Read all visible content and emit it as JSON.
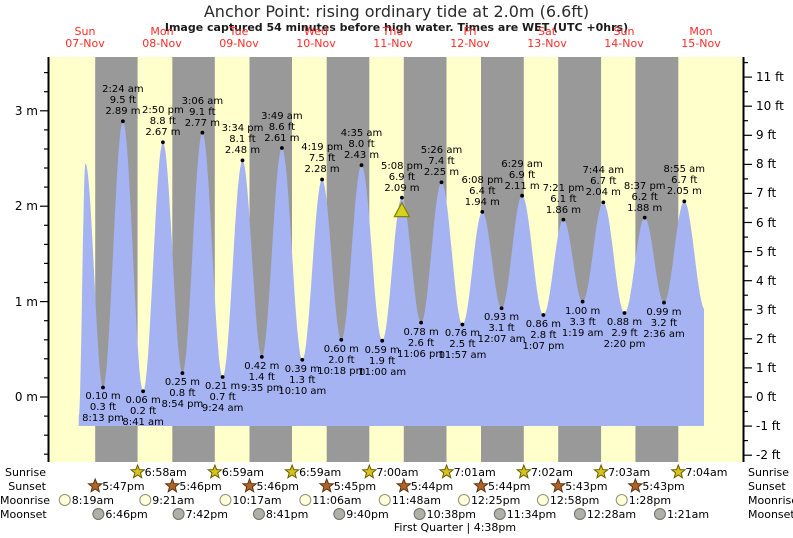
{
  "title": "Anchor Point: rising  ordinary tide at 2.0m (6.6ft)",
  "subtitle": "Image captured 54 minutes before high water. Times are WET (UTC +0hrs)",
  "moon_phase_note": "First Quarter | 4:38pm",
  "colors": {
    "background": "#ffffff",
    "plot_day_band": "#ffffcc",
    "plot_night_band": "#999999",
    "tide_area": "#a5b3f2",
    "date_label": "#ff2a2a",
    "axis": "#000000",
    "annotation_dot": "#000000",
    "current_marker_fill": "#d6d21e",
    "current_marker_stroke": "#878200",
    "sunrise_star_fill": "#d4c41e",
    "sunrise_star_stroke": "#6b5a00",
    "sunset_star_fill": "#b06428",
    "sunset_star_stroke": "#5c3210",
    "moonrise_fill": "#ffffd9",
    "moonrise_stroke": "#8f8f77",
    "moonset_fill": "#b0b0a8",
    "moonset_stroke": "#70706a"
  },
  "chart_data": {
    "type": "area",
    "title": "Anchor Point: rising  ordinary tide at 2.0m (6.6ft)",
    "timezone_note": "Times are WET (UTC +0hrs)",
    "ylabel_left": "meters",
    "ylabel_right": "feet",
    "ylim_m": [
      -0.72,
      3.57
    ],
    "area_base_ft": -1,
    "grid": false,
    "days": [
      {
        "dow": "Sun",
        "date": "07-Nov"
      },
      {
        "dow": "Mon",
        "date": "08-Nov"
      },
      {
        "dow": "Tue",
        "date": "09-Nov"
      },
      {
        "dow": "Wed",
        "date": "10-Nov"
      },
      {
        "dow": "Thu",
        "date": "11-Nov"
      },
      {
        "dow": "Fri",
        "date": "12-Nov"
      },
      {
        "dow": "Sat",
        "date": "13-Nov"
      },
      {
        "dow": "Sun",
        "date": "14-Nov"
      },
      {
        "dow": "Mon",
        "date": "15-Nov"
      }
    ],
    "y_axis_left": [
      {
        "label": "3 m",
        "value": 3
      },
      {
        "label": "2 m",
        "value": 2
      },
      {
        "label": "1 m",
        "value": 1
      },
      {
        "label": "0 m",
        "value": 0
      }
    ],
    "y_axis_right": [
      {
        "label": "11 ft",
        "value": 11
      },
      {
        "label": "10 ft",
        "value": 10
      },
      {
        "label": "9 ft",
        "value": 9
      },
      {
        "label": "8 ft",
        "value": 8
      },
      {
        "label": "7 ft",
        "value": 7
      },
      {
        "label": "6 ft",
        "value": 6
      },
      {
        "label": "5 ft",
        "value": 5
      },
      {
        "label": "4 ft",
        "value": 4
      },
      {
        "label": "3 ft",
        "value": 3
      },
      {
        "label": "2 ft",
        "value": 2
      },
      {
        "label": "1 ft",
        "value": 1
      },
      {
        "label": "0 ft",
        "value": 0
      },
      {
        "label": "-1 ft",
        "value": -1
      },
      {
        "label": "-2 ft",
        "value": -2
      }
    ],
    "extremes": [
      {
        "day": 0,
        "time": "12:40 pm",
        "m": -0.2,
        "kind": "edge",
        "annotate": false
      },
      {
        "day": 0,
        "time": "2:45 pm",
        "m": 2.45,
        "kind": "high",
        "annotate": false
      },
      {
        "day": 0,
        "time": "8:13 pm",
        "m": 0.1,
        "ft": 0.3,
        "kind": "low"
      },
      {
        "day": 1,
        "time": "2:24 am",
        "m": 2.89,
        "ft": 9.5,
        "kind": "high"
      },
      {
        "day": 1,
        "time": "8:41 am",
        "m": 0.06,
        "ft": 0.2,
        "kind": "low"
      },
      {
        "day": 1,
        "time": "2:50 pm",
        "m": 2.67,
        "ft": 8.8,
        "kind": "high"
      },
      {
        "day": 1,
        "time": "8:54 pm",
        "m": 0.25,
        "ft": 0.8,
        "kind": "low"
      },
      {
        "day": 2,
        "time": "3:06 am",
        "m": 2.77,
        "ft": 9.1,
        "kind": "high"
      },
      {
        "day": 2,
        "time": "9:24 am",
        "m": 0.21,
        "ft": 0.7,
        "kind": "low"
      },
      {
        "day": 2,
        "time": "3:34 pm",
        "m": 2.48,
        "ft": 8.1,
        "kind": "high"
      },
      {
        "day": 2,
        "time": "9:35 pm",
        "m": 0.42,
        "ft": 1.4,
        "kind": "low"
      },
      {
        "day": 3,
        "time": "3:49 am",
        "m": 2.61,
        "ft": 8.6,
        "kind": "high"
      },
      {
        "day": 3,
        "time": "10:10 am",
        "m": 0.39,
        "ft": 1.3,
        "kind": "low"
      },
      {
        "day": 3,
        "time": "4:19 pm",
        "m": 2.28,
        "ft": 7.5,
        "kind": "high"
      },
      {
        "day": 3,
        "time": "10:18 pm",
        "m": 0.6,
        "ft": 2.0,
        "kind": "low"
      },
      {
        "day": 4,
        "time": "4:35 am",
        "m": 2.43,
        "ft": 8.0,
        "kind": "high"
      },
      {
        "day": 4,
        "time": "11:00 am",
        "m": 0.59,
        "ft": 1.9,
        "kind": "low"
      },
      {
        "day": 4,
        "time": "5:08 pm",
        "m": 2.09,
        "ft": 6.9,
        "kind": "high",
        "current": true
      },
      {
        "day": 4,
        "time": "11:06 pm",
        "m": 0.78,
        "ft": 2.6,
        "kind": "low"
      },
      {
        "day": 5,
        "time": "5:26 am",
        "m": 2.25,
        "ft": 7.4,
        "kind": "high"
      },
      {
        "day": 5,
        "time": "11:57 am",
        "m": 0.76,
        "ft": 2.5,
        "kind": "low"
      },
      {
        "day": 5,
        "time": "6:08 pm",
        "m": 1.94,
        "ft": 6.4,
        "kind": "high"
      },
      {
        "day": 6,
        "time": "12:07 am",
        "m": 0.93,
        "ft": 3.1,
        "kind": "low"
      },
      {
        "day": 6,
        "time": "6:29 am",
        "m": 2.11,
        "ft": 6.9,
        "kind": "high"
      },
      {
        "day": 6,
        "time": "1:07 pm",
        "m": 0.86,
        "ft": 2.8,
        "kind": "low"
      },
      {
        "day": 6,
        "time": "7:21 pm",
        "m": 1.86,
        "ft": 6.1,
        "kind": "high"
      },
      {
        "day": 7,
        "time": "1:19 am",
        "m": 1.0,
        "ft": 3.3,
        "kind": "low"
      },
      {
        "day": 7,
        "time": "7:44 am",
        "m": 2.04,
        "ft": 6.7,
        "kind": "high"
      },
      {
        "day": 7,
        "time": "2:20 pm",
        "m": 0.88,
        "ft": 2.9,
        "kind": "low"
      },
      {
        "day": 7,
        "time": "8:37 pm",
        "m": 1.88,
        "ft": 6.2,
        "kind": "high"
      },
      {
        "day": 8,
        "time": "2:36 am",
        "m": 0.99,
        "ft": 3.2,
        "kind": "low"
      },
      {
        "day": 8,
        "time": "8:55 am",
        "m": 2.05,
        "ft": 6.7,
        "kind": "high"
      },
      {
        "day": 8,
        "time": "3:20 pm",
        "m": 0.92,
        "kind": "edge",
        "annotate": false
      }
    ],
    "current_marker": {
      "day": 4,
      "time": "5:08 pm",
      "symbol": "yellow-triangle"
    }
  },
  "sun_moon": {
    "rows": [
      {
        "label": "Sunrise",
        "icon": "sunrise-icon",
        "entries": [
          {
            "day": 1,
            "time": "6:58am"
          },
          {
            "day": 2,
            "time": "6:59am"
          },
          {
            "day": 3,
            "time": "6:59am"
          },
          {
            "day": 4,
            "time": "7:00am"
          },
          {
            "day": 5,
            "time": "7:01am"
          },
          {
            "day": 6,
            "time": "7:02am"
          },
          {
            "day": 7,
            "time": "7:03am"
          },
          {
            "day": 8,
            "time": "7:04am"
          }
        ]
      },
      {
        "label": "Sunset",
        "icon": "sunset-icon",
        "entries": [
          {
            "day": 0,
            "time": "5:47pm"
          },
          {
            "day": 1,
            "time": "5:46pm"
          },
          {
            "day": 2,
            "time": "5:46pm"
          },
          {
            "day": 3,
            "time": "5:45pm"
          },
          {
            "day": 4,
            "time": "5:44pm"
          },
          {
            "day": 5,
            "time": "5:44pm"
          },
          {
            "day": 6,
            "time": "5:43pm"
          },
          {
            "day": 7,
            "time": "5:43pm"
          }
        ]
      },
      {
        "label": "Moonrise",
        "icon": "moonrise-icon",
        "entries": [
          {
            "day": 0,
            "time": "8:19am"
          },
          {
            "day": 1,
            "time": "9:21am"
          },
          {
            "day": 2,
            "time": "10:17am"
          },
          {
            "day": 3,
            "time": "11:06am"
          },
          {
            "day": 4,
            "time": "11:48am"
          },
          {
            "day": 5,
            "time": "12:25pm"
          },
          {
            "day": 6,
            "time": "12:58pm"
          },
          {
            "day": 7,
            "time": "1:28pm"
          }
        ]
      },
      {
        "label": "Moonset",
        "icon": "moonset-icon",
        "entries": [
          {
            "day": 0,
            "time": "6:46pm"
          },
          {
            "day": 1,
            "time": "7:42pm"
          },
          {
            "day": 2,
            "time": "8:41pm"
          },
          {
            "day": 3,
            "time": "9:40pm"
          },
          {
            "day": 4,
            "time": "10:38pm"
          },
          {
            "day": 5,
            "time": "11:34pm"
          },
          {
            "day": 7,
            "time": "12:28am"
          },
          {
            "day": 8,
            "time": "1:21am"
          }
        ]
      }
    ]
  }
}
